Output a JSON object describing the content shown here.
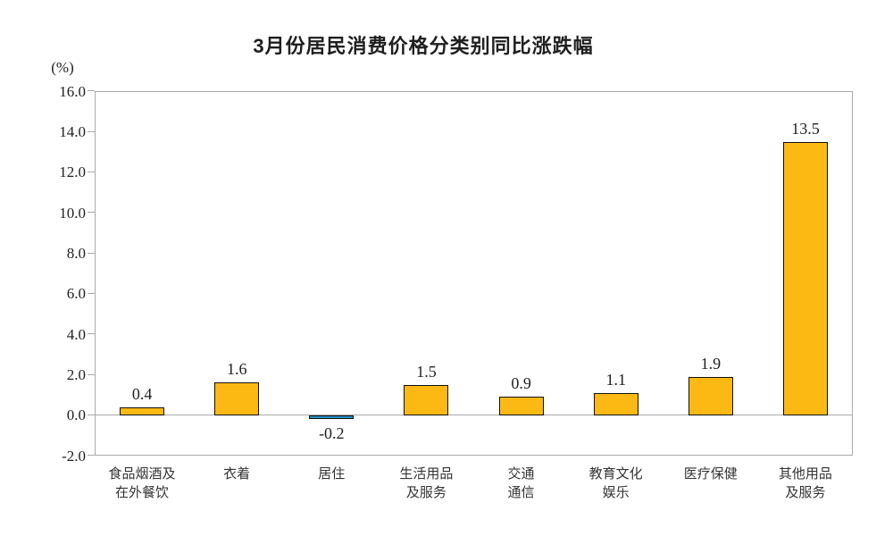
{
  "chart_data": {
    "type": "bar",
    "title": "3月份居民消费价格分类别同比涨跌幅",
    "ylabel": "(%)",
    "xlabel": "",
    "categories": [
      [
        "食品烟酒及",
        "在外餐饮"
      ],
      [
        "衣着"
      ],
      [
        "居住"
      ],
      [
        "生活用品",
        "及服务"
      ],
      [
        "交通",
        "通信"
      ],
      [
        "教育文化",
        "娱乐"
      ],
      [
        "医疗保健"
      ],
      [
        "其他用品",
        "及服务"
      ]
    ],
    "values": [
      0.4,
      1.6,
      -0.2,
      1.5,
      0.9,
      1.1,
      1.9,
      13.5
    ],
    "value_labels": [
      "0.4",
      "1.6",
      "-0.2",
      "1.5",
      "0.9",
      "1.1",
      "1.9",
      "13.5"
    ],
    "ylim": [
      -2.0,
      16.0
    ],
    "ytick_step": 2.0,
    "ytick_labels": [
      "16.0",
      "14.0",
      "12.0",
      "10.0",
      "8.0",
      "6.0",
      "4.0",
      "2.0",
      "0.0",
      "-2.0"
    ],
    "grid": false,
    "legend_position": "none",
    "colors": {
      "bar_positive": "#FDB913",
      "bar_negative": "#2591C5",
      "bar_border": "#111111",
      "axis_line": "#a9a9a9",
      "text": "#1f1f1f",
      "category_text": "#333333",
      "background": "#ffffff"
    }
  }
}
